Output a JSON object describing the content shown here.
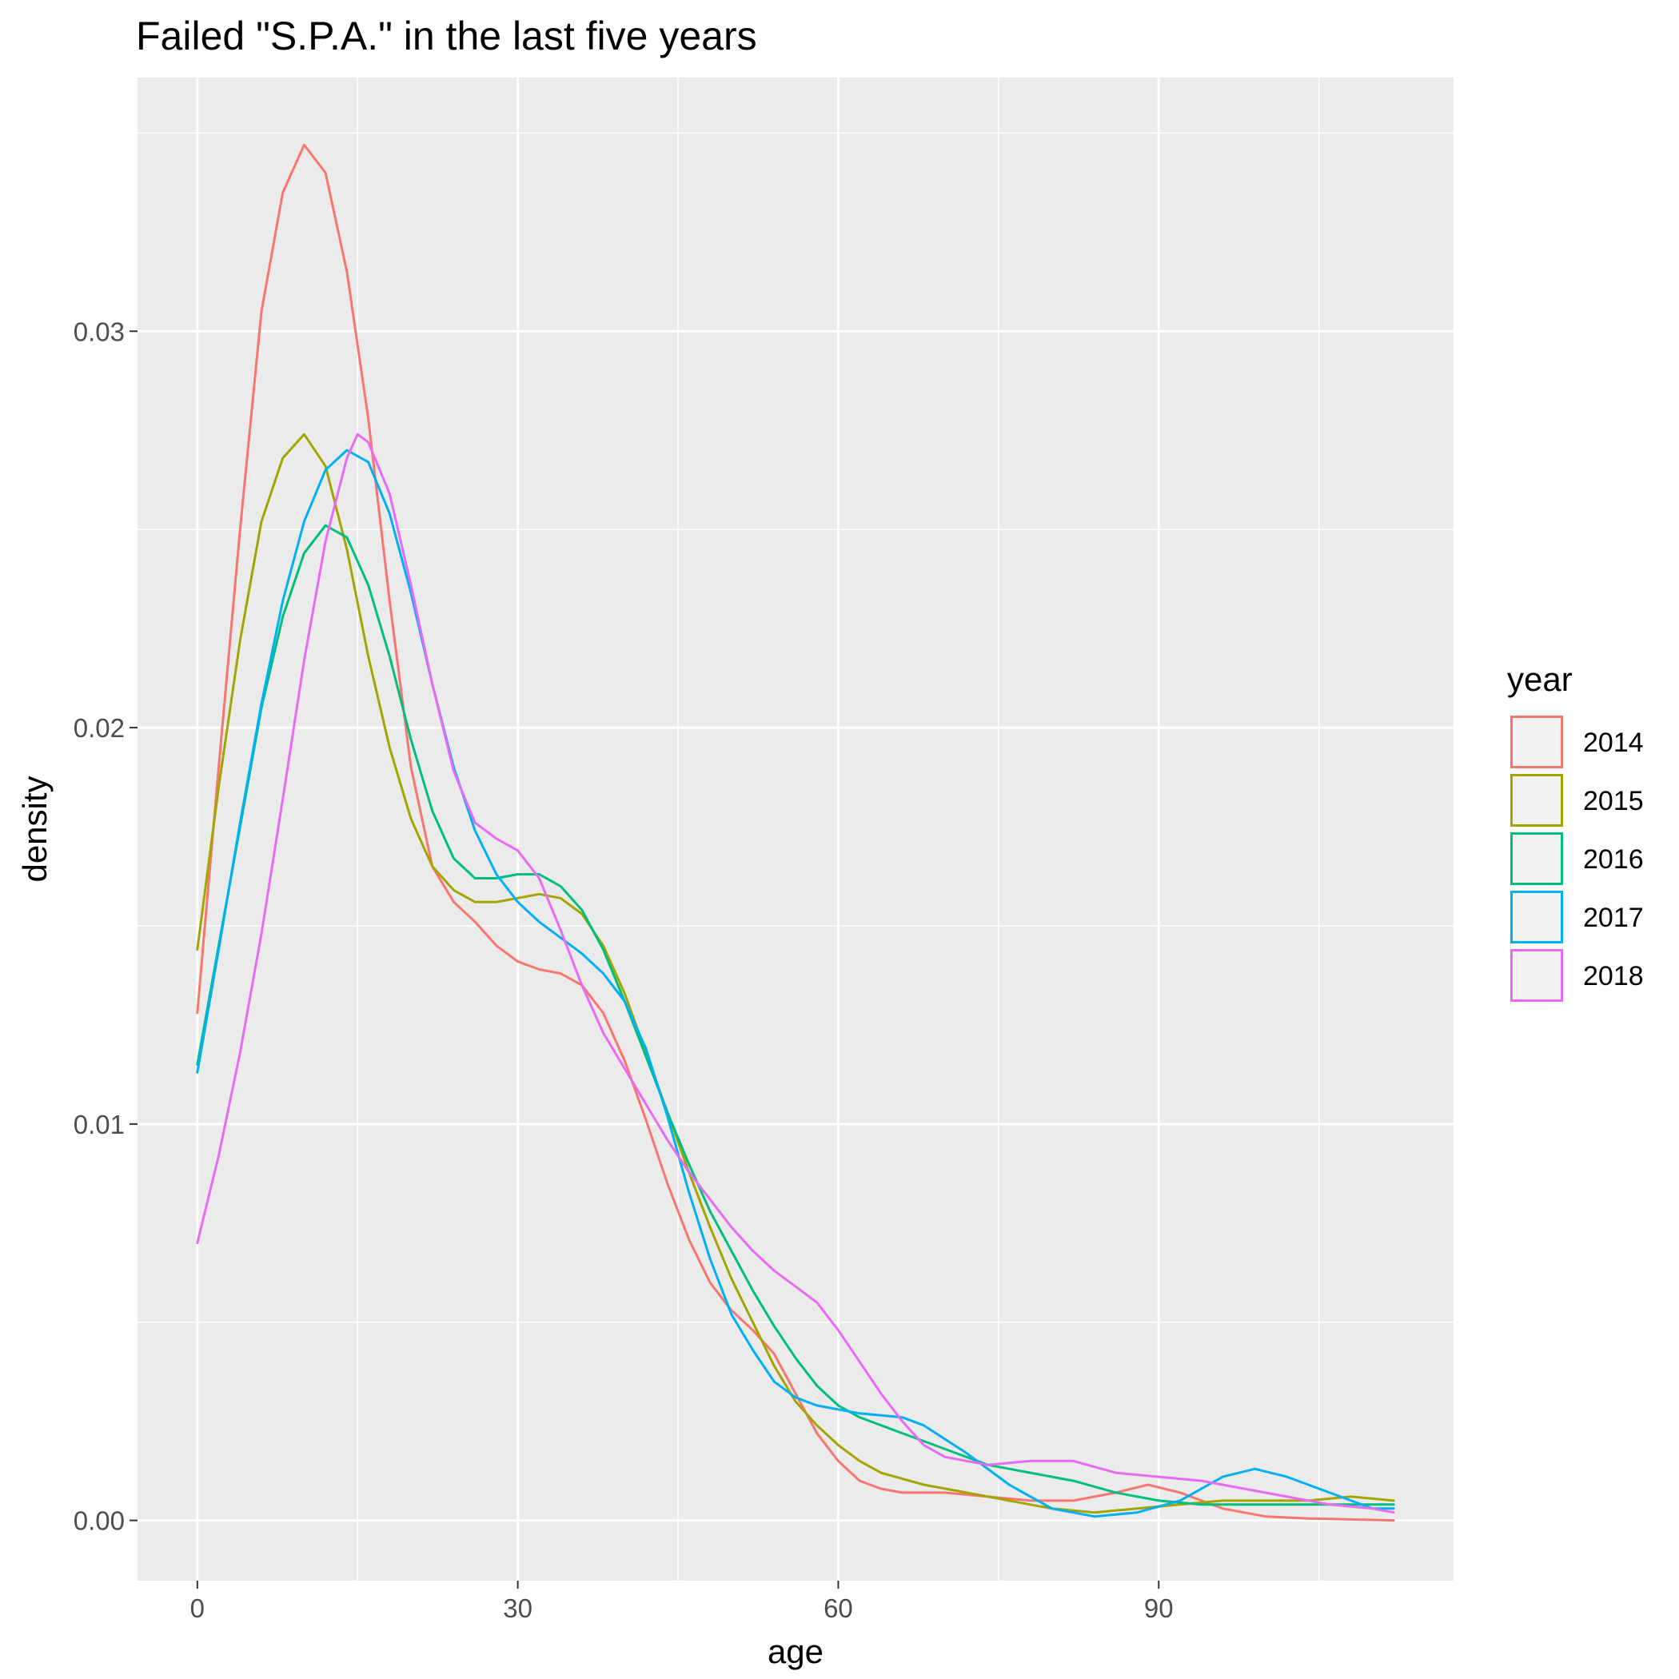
{
  "chart_data": {
    "type": "line",
    "title": "Failed \"S.P.A.\" in the last five years",
    "xlabel": "age",
    "ylabel": "density",
    "xlim": [
      -5.6,
      117.6
    ],
    "ylim": [
      -0.00152,
      0.0364
    ],
    "x_ticks": [
      0,
      30,
      60,
      90
    ],
    "x_tick_labels": [
      "0",
      "30",
      "60",
      "90"
    ],
    "x_minor_ticks": [
      15,
      45,
      75,
      105
    ],
    "y_ticks": [
      0,
      0.01,
      0.02,
      0.03
    ],
    "y_tick_labels": [
      "0.00",
      "0.01",
      "0.02",
      "0.03"
    ],
    "y_minor_ticks": [
      0.005,
      0.015,
      0.025,
      0.035
    ],
    "grid": true,
    "legend_title": "year",
    "legend_position": "right",
    "series": [
      {
        "name": "2014",
        "color": "#F8766D",
        "points": [
          [
            0,
            0.0128
          ],
          [
            2,
            0.019
          ],
          [
            4,
            0.025
          ],
          [
            6,
            0.0305
          ],
          [
            8,
            0.0335
          ],
          [
            10,
            0.0347
          ],
          [
            12,
            0.034
          ],
          [
            14,
            0.0315
          ],
          [
            16,
            0.0278
          ],
          [
            18,
            0.0232
          ],
          [
            20,
            0.019
          ],
          [
            22,
            0.0165
          ],
          [
            24,
            0.0156
          ],
          [
            26,
            0.0151
          ],
          [
            28,
            0.0145
          ],
          [
            30,
            0.0141
          ],
          [
            32,
            0.0139
          ],
          [
            34,
            0.0138
          ],
          [
            36,
            0.0135
          ],
          [
            38,
            0.0128
          ],
          [
            40,
            0.0116
          ],
          [
            42,
            0.0101
          ],
          [
            44,
            0.0085
          ],
          [
            46,
            0.0071
          ],
          [
            48,
            0.006
          ],
          [
            50,
            0.0053
          ],
          [
            52,
            0.0048
          ],
          [
            54,
            0.0042
          ],
          [
            56,
            0.0032
          ],
          [
            58,
            0.0022
          ],
          [
            60,
            0.0015
          ],
          [
            62,
            0.001
          ],
          [
            64,
            0.0008
          ],
          [
            66,
            0.0007
          ],
          [
            70,
            0.0007
          ],
          [
            74,
            0.0006
          ],
          [
            78,
            0.0005
          ],
          [
            82,
            0.0005
          ],
          [
            86,
            0.0007
          ],
          [
            89,
            0.0009
          ],
          [
            92,
            0.0007
          ],
          [
            96,
            0.0003
          ],
          [
            100,
            0.0001
          ],
          [
            104,
            5e-05
          ],
          [
            112,
            0.0
          ]
        ]
      },
      {
        "name": "2015",
        "color": "#A3A500",
        "points": [
          [
            0,
            0.0144
          ],
          [
            2,
            0.0185
          ],
          [
            4,
            0.0222
          ],
          [
            6,
            0.0252
          ],
          [
            8,
            0.0268
          ],
          [
            10,
            0.0274
          ],
          [
            12,
            0.0266
          ],
          [
            14,
            0.0245
          ],
          [
            16,
            0.0218
          ],
          [
            18,
            0.0195
          ],
          [
            20,
            0.0177
          ],
          [
            22,
            0.0165
          ],
          [
            24,
            0.0159
          ],
          [
            26,
            0.0156
          ],
          [
            28,
            0.0156
          ],
          [
            30,
            0.0157
          ],
          [
            32,
            0.0158
          ],
          [
            34,
            0.0157
          ],
          [
            36,
            0.0153
          ],
          [
            38,
            0.0145
          ],
          [
            40,
            0.0133
          ],
          [
            42,
            0.0118
          ],
          [
            44,
            0.0103
          ],
          [
            46,
            0.0088
          ],
          [
            48,
            0.0074
          ],
          [
            50,
            0.0061
          ],
          [
            52,
            0.005
          ],
          [
            54,
            0.0039
          ],
          [
            56,
            0.003
          ],
          [
            58,
            0.0024
          ],
          [
            60,
            0.0019
          ],
          [
            62,
            0.0015
          ],
          [
            64,
            0.0012
          ],
          [
            68,
            0.0009
          ],
          [
            72,
            0.0007
          ],
          [
            76,
            0.0005
          ],
          [
            80,
            0.0003
          ],
          [
            84,
            0.0002
          ],
          [
            88,
            0.0003
          ],
          [
            92,
            0.0004
          ],
          [
            96,
            0.0005
          ],
          [
            100,
            0.0005
          ],
          [
            104,
            0.0005
          ],
          [
            108,
            0.0006
          ],
          [
            112,
            0.0005
          ]
        ]
      },
      {
        "name": "2016",
        "color": "#00BF7D",
        "points": [
          [
            0,
            0.0115
          ],
          [
            2,
            0.0145
          ],
          [
            4,
            0.0175
          ],
          [
            6,
            0.0205
          ],
          [
            8,
            0.0228
          ],
          [
            10,
            0.0244
          ],
          [
            12,
            0.0251
          ],
          [
            14,
            0.0248
          ],
          [
            16,
            0.0236
          ],
          [
            18,
            0.0218
          ],
          [
            20,
            0.0197
          ],
          [
            22,
            0.0179
          ],
          [
            24,
            0.0167
          ],
          [
            26,
            0.0162
          ],
          [
            28,
            0.0162
          ],
          [
            30,
            0.0163
          ],
          [
            32,
            0.0163
          ],
          [
            34,
            0.016
          ],
          [
            36,
            0.0154
          ],
          [
            38,
            0.0144
          ],
          [
            40,
            0.0131
          ],
          [
            42,
            0.0117
          ],
          [
            44,
            0.0103
          ],
          [
            46,
            0.009
          ],
          [
            48,
            0.0078
          ],
          [
            50,
            0.0068
          ],
          [
            52,
            0.0058
          ],
          [
            54,
            0.0049
          ],
          [
            56,
            0.0041
          ],
          [
            58,
            0.0034
          ],
          [
            60,
            0.0029
          ],
          [
            62,
            0.0026
          ],
          [
            66,
            0.0022
          ],
          [
            70,
            0.0018
          ],
          [
            74,
            0.0014
          ],
          [
            78,
            0.0012
          ],
          [
            82,
            0.001
          ],
          [
            86,
            0.0007
          ],
          [
            90,
            0.0005
          ],
          [
            94,
            0.0004
          ],
          [
            98,
            0.0004
          ],
          [
            102,
            0.0004
          ],
          [
            106,
            0.0004
          ],
          [
            110,
            0.0004
          ],
          [
            112,
            0.0004
          ]
        ]
      },
      {
        "name": "2017",
        "color": "#00B0F6",
        "points": [
          [
            0,
            0.0113
          ],
          [
            2,
            0.0144
          ],
          [
            4,
            0.0176
          ],
          [
            6,
            0.0206
          ],
          [
            8,
            0.0232
          ],
          [
            10,
            0.0252
          ],
          [
            12,
            0.0265
          ],
          [
            14,
            0.027
          ],
          [
            16,
            0.0267
          ],
          [
            18,
            0.0254
          ],
          [
            20,
            0.0234
          ],
          [
            22,
            0.0211
          ],
          [
            24,
            0.019
          ],
          [
            26,
            0.0174
          ],
          [
            28,
            0.0163
          ],
          [
            30,
            0.0156
          ],
          [
            32,
            0.0151
          ],
          [
            34,
            0.0147
          ],
          [
            36,
            0.0143
          ],
          [
            38,
            0.0138
          ],
          [
            40,
            0.0131
          ],
          [
            42,
            0.0119
          ],
          [
            44,
            0.0102
          ],
          [
            46,
            0.0083
          ],
          [
            48,
            0.0066
          ],
          [
            50,
            0.0052
          ],
          [
            52,
            0.0043
          ],
          [
            54,
            0.0035
          ],
          [
            56,
            0.0031
          ],
          [
            58,
            0.0029
          ],
          [
            62,
            0.0027
          ],
          [
            66,
            0.0026
          ],
          [
            68,
            0.0024
          ],
          [
            72,
            0.0017
          ],
          [
            76,
            0.0009
          ],
          [
            80,
            0.0003
          ],
          [
            84,
            0.0001
          ],
          [
            88,
            0.0002
          ],
          [
            92,
            0.0005
          ],
          [
            96,
            0.0011
          ],
          [
            99,
            0.0013
          ],
          [
            102,
            0.0011
          ],
          [
            106,
            0.0007
          ],
          [
            110,
            0.0003
          ],
          [
            112,
            0.0003
          ]
        ]
      },
      {
        "name": "2018",
        "color": "#E76BF3",
        "points": [
          [
            0,
            0.007
          ],
          [
            2,
            0.0092
          ],
          [
            4,
            0.0118
          ],
          [
            6,
            0.0148
          ],
          [
            8,
            0.0182
          ],
          [
            10,
            0.0217
          ],
          [
            12,
            0.0247
          ],
          [
            14,
            0.0268
          ],
          [
            15,
            0.0274
          ],
          [
            16,
            0.0272
          ],
          [
            18,
            0.0259
          ],
          [
            20,
            0.0236
          ],
          [
            22,
            0.0211
          ],
          [
            24,
            0.0189
          ],
          [
            26,
            0.0176
          ],
          [
            28,
            0.0172
          ],
          [
            30,
            0.0169
          ],
          [
            32,
            0.0162
          ],
          [
            34,
            0.0149
          ],
          [
            36,
            0.0135
          ],
          [
            38,
            0.0123
          ],
          [
            40,
            0.0114
          ],
          [
            42,
            0.0105
          ],
          [
            44,
            0.0096
          ],
          [
            46,
            0.0088
          ],
          [
            48,
            0.0081
          ],
          [
            50,
            0.0074
          ],
          [
            52,
            0.0068
          ],
          [
            54,
            0.0063
          ],
          [
            56,
            0.0059
          ],
          [
            58,
            0.0055
          ],
          [
            60,
            0.0048
          ],
          [
            62,
            0.004
          ],
          [
            64,
            0.0032
          ],
          [
            66,
            0.0025
          ],
          [
            68,
            0.0019
          ],
          [
            70,
            0.0016
          ],
          [
            74,
            0.0014
          ],
          [
            78,
            0.0015
          ],
          [
            82,
            0.0015
          ],
          [
            86,
            0.0012
          ],
          [
            90,
            0.0011
          ],
          [
            94,
            0.001
          ],
          [
            98,
            0.0008
          ],
          [
            102,
            0.0006
          ],
          [
            106,
            0.0004
          ],
          [
            110,
            0.0003
          ],
          [
            112,
            0.0002
          ]
        ]
      }
    ]
  }
}
